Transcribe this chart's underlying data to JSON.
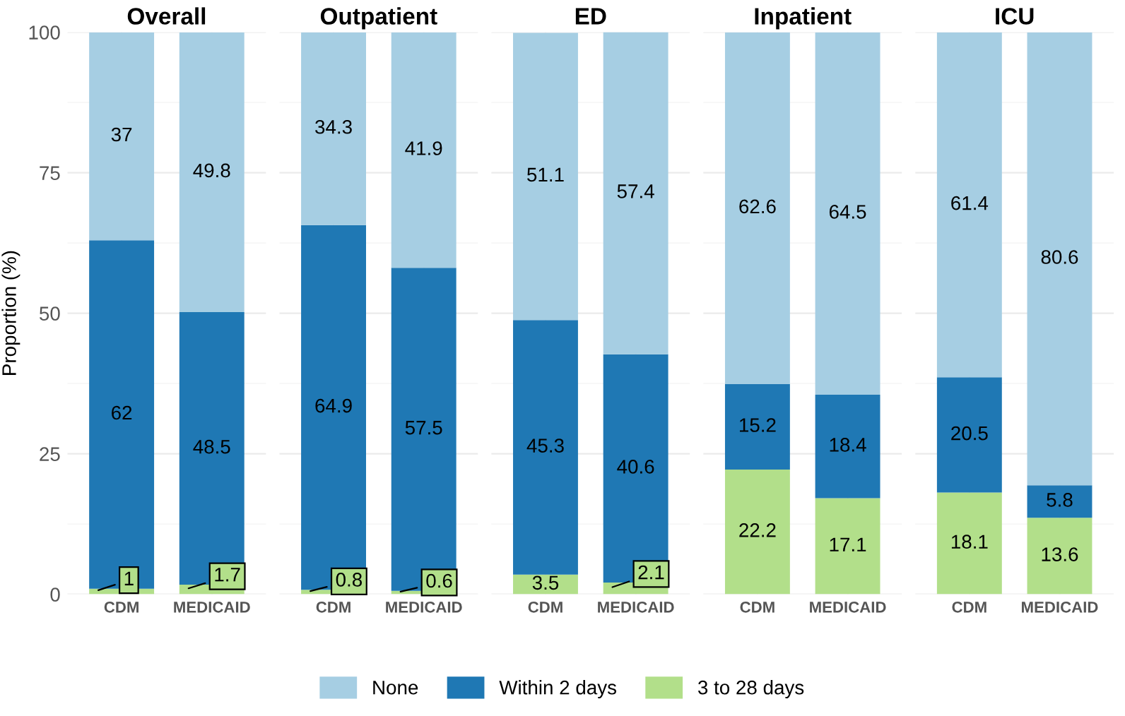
{
  "chart_data": [
    {
      "type": "bar",
      "title": "Overall",
      "ylabel": "Proportion (%)",
      "categories": [
        "CDM",
        "MEDICAID"
      ],
      "stacked": true,
      "ylim": [
        0,
        100
      ],
      "yticks": [
        0,
        25,
        50,
        75,
        100
      ],
      "grid": true,
      "data_labels": true,
      "legend": "bottom",
      "series": [
        {
          "name": "3 to 28 days",
          "color": "#b2df8a",
          "values": [
            1,
            1.7
          ]
        },
        {
          "name": "Within 2 days",
          "color": "#1f78b4",
          "values": [
            62,
            48.5
          ]
        },
        {
          "name": "None",
          "color": "#a6cee3",
          "values": [
            37,
            49.8
          ]
        }
      ]
    },
    {
      "type": "bar",
      "title": "Outpatient",
      "categories": [
        "CDM",
        "MEDICAID"
      ],
      "stacked": true,
      "ylim": [
        0,
        100
      ],
      "yticks": [
        0,
        25,
        50,
        75,
        100
      ],
      "grid": true,
      "data_labels": true,
      "tick_labels": "x",
      "series": [
        {
          "color": "#b2df8a",
          "values": [
            0.8,
            0.6
          ]
        },
        {
          "color": "#1f78b4",
          "values": [
            64.9,
            57.5
          ]
        },
        {
          "color": "#a6cee3",
          "values": [
            34.3,
            41.9
          ]
        }
      ]
    },
    {
      "type": "bar",
      "title": "ED",
      "categories": [
        "CDM",
        "MEDICAID"
      ],
      "stacked": true,
      "ylim": [
        0,
        100
      ],
      "yticks": [
        0,
        25,
        50,
        75,
        100
      ],
      "grid": true,
      "data_labels": true,
      "tick_labels": "x",
      "series": [
        {
          "color": "#b2df8a",
          "values": [
            3.5,
            2.1
          ]
        },
        {
          "color": "#1f78b4",
          "values": [
            45.3,
            40.6
          ]
        },
        {
          "color": "#a6cee3",
          "values": [
            51.1,
            57.4
          ]
        }
      ]
    },
    {
      "type": "bar",
      "title": "Inpatient",
      "categories": [
        "CDM",
        "MEDICAID"
      ],
      "stacked": true,
      "ylim": [
        0,
        100
      ],
      "yticks": [
        0,
        25,
        50,
        75,
        100
      ],
      "grid": true,
      "data_labels": true,
      "tick_labels": "x",
      "series": [
        {
          "color": "#b2df8a",
          "values": [
            22.2,
            17.1
          ]
        },
        {
          "color": "#1f78b4",
          "values": [
            15.2,
            18.4
          ]
        },
        {
          "color": "#a6cee3",
          "values": [
            62.6,
            64.5
          ]
        }
      ]
    },
    {
      "type": "bar",
      "title": "ICU",
      "categories": [
        "CDM",
        "MEDICAID"
      ],
      "stacked": true,
      "ylim": [
        0,
        100
      ],
      "yticks": [
        0,
        25,
        50,
        75,
        100
      ],
      "grid": true,
      "data_labels": true,
      "tick_labels": "x",
      "series": [
        {
          "color": "#b2df8a",
          "values": [
            18.1,
            13.6
          ]
        },
        {
          "color": "#1f78b4",
          "values": [
            20.5,
            5.8
          ]
        },
        {
          "color": "#a6cee3",
          "values": [
            61.4,
            80.6
          ]
        }
      ]
    }
  ]
}
